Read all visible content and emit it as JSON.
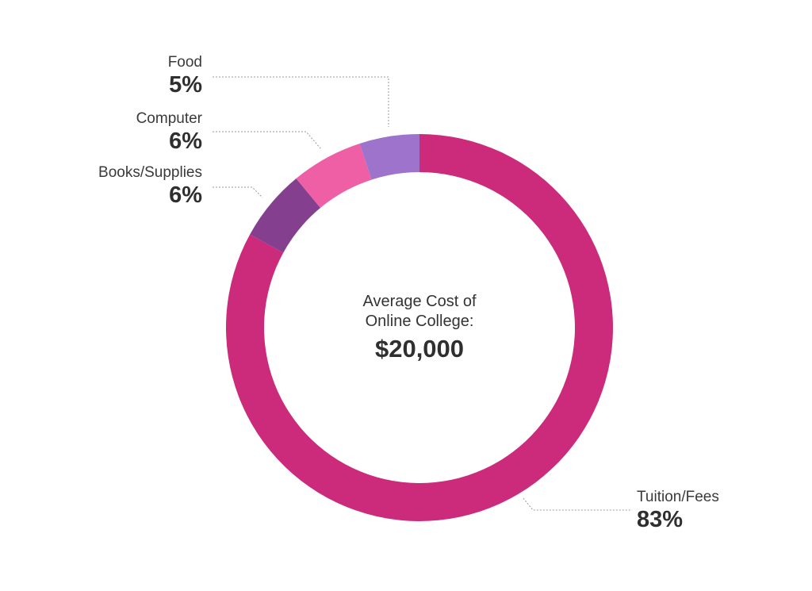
{
  "chart_data": {
    "type": "pie",
    "title": "",
    "center_label": {
      "title": "Average Cost of Online College:",
      "title_line1": "Average Cost of",
      "title_line2": "Online College:",
      "value": "$20,000"
    },
    "slices": [
      {
        "name": "Tuition/Fees",
        "value": 83,
        "label": "83%",
        "color": "#cc2a7a"
      },
      {
        "name": "Books/Supplies",
        "value": 6,
        "label": "6%",
        "color": "#84408f"
      },
      {
        "name": "Computer",
        "value": 6,
        "label": "6%",
        "color": "#ee5fa6"
      },
      {
        "name": "Food",
        "value": 5,
        "label": "5%",
        "color": "#9e73cc"
      }
    ],
    "leader_color": "#9a9a9a"
  }
}
